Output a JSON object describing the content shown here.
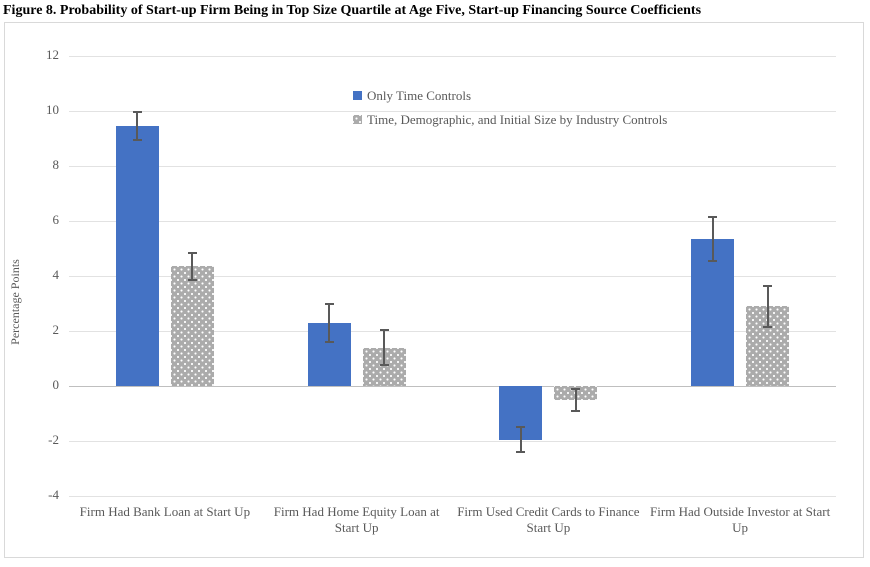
{
  "chart_data": {
    "type": "bar",
    "title": "Figure 8. Probability of Start-up Firm Being in Top Size Quartile at Age Five, Start-up Financing Source Coefficients",
    "xlabel": "",
    "ylabel": "Percentage Points",
    "ylim": [
      -4,
      12
    ],
    "ytick_step": 2,
    "yticks": [
      -4,
      -2,
      0,
      2,
      4,
      6,
      8,
      10,
      12
    ],
    "grid": true,
    "legend_position": "top-center-inside",
    "categories": [
      "Firm Had Bank Loan at Start Up",
      "Firm Had Home Equity Loan at Start Up",
      "Firm Used Credit Cards to Finance Start Up",
      "Firm Had Outside Investor at Start Up"
    ],
    "series": [
      {
        "name": "Only Time Controls",
        "color": "#4472C4",
        "pattern": "solid",
        "values": [
          9.45,
          2.3,
          -1.95,
          5.35
        ],
        "error_bars": [
          0.5,
          0.7,
          0.45,
          0.8
        ]
      },
      {
        "name": "Time, Demographic, and Initial Size by Industry Controls",
        "color": "#ABABAB",
        "pattern": "dots",
        "values": [
          4.35,
          1.4,
          -0.5,
          2.9
        ],
        "error_bars": [
          0.5,
          0.65,
          0.4,
          0.75
        ]
      }
    ],
    "colors": {
      "gridline": "#E2E2E2",
      "zero_axis": "#BFBFBF",
      "error_bar": "#595959",
      "axis_text": "#595959",
      "title_text": "#000000"
    }
  }
}
